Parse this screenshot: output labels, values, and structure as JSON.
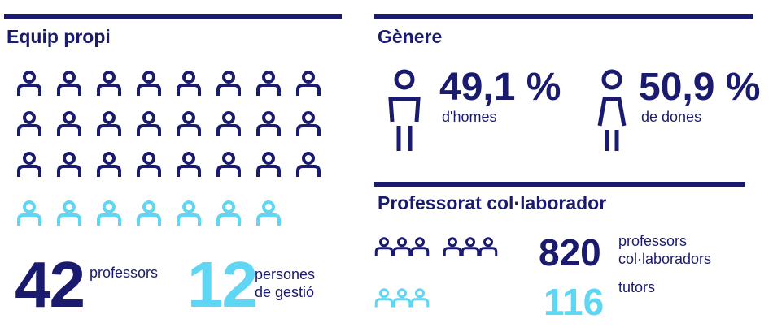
{
  "equip": {
    "title": "Equip propi",
    "professors": {
      "number": "42",
      "label": "professors"
    },
    "gestio": {
      "number": "12",
      "label": "persones de gestió"
    }
  },
  "genere": {
    "title": "Gènere",
    "homes": {
      "number": "49,1 %",
      "label": "d'homes"
    },
    "dones": {
      "number": "50,9 %",
      "label": "de dones"
    }
  },
  "collaborador": {
    "title": "Professorat col·laborador",
    "professors": {
      "number": "820",
      "label": "professors col·laboradors"
    },
    "tutors": {
      "number": "116",
      "label": "tutors"
    }
  }
}
